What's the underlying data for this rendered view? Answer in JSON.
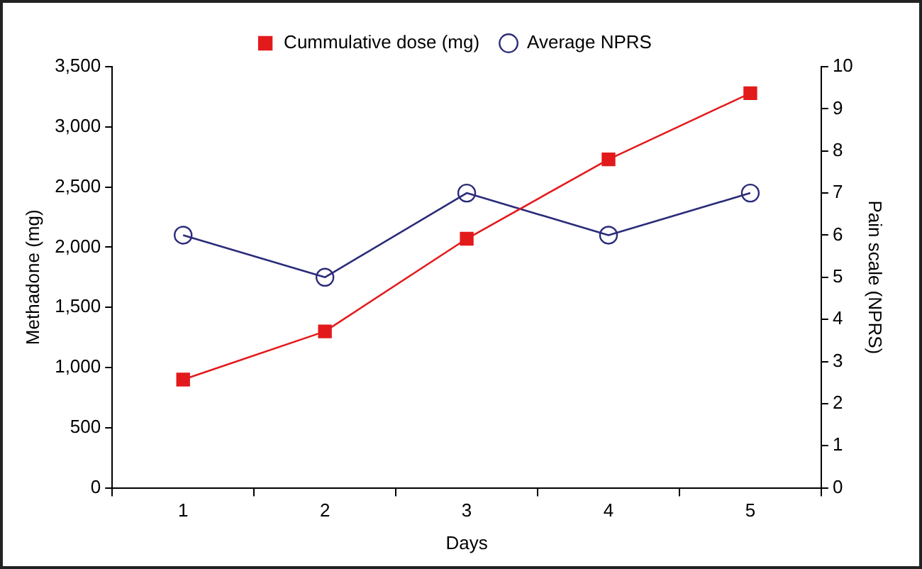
{
  "chart_data": {
    "type": "line",
    "xlabel": "Days",
    "ylabel": "Methadone (mg)",
    "y2label": "Pain scale (NPRS)",
    "categories": [
      "1",
      "2",
      "3",
      "4",
      "5"
    ],
    "series": [
      {
        "name": "Cummulative dose (mg)",
        "color": "#e31a1c",
        "values": [
          900,
          1300,
          2070,
          2730,
          3280
        ],
        "marker": "square"
      },
      {
        "name": "Average NPRS",
        "color": "#2b2b7a",
        "values": [
          6,
          5,
          7,
          6,
          7
        ],
        "axis": "y2",
        "marker": "circle"
      }
    ],
    "ylim": [
      0,
      3500
    ],
    "yticks": [
      0,
      500,
      {
        "value": 1000,
        "label": "1,000"
      },
      {
        "value": 1500,
        "label": "1,500"
      },
      {
        "value": 2000,
        "label": "2,000"
      },
      {
        "value": 2500,
        "label": "2,500"
      },
      {
        "value": 3000,
        "label": "3,000"
      },
      {
        "value": 3500,
        "label": "3,500"
      }
    ],
    "y2lim": [
      0,
      10
    ],
    "y2ticks": [
      0,
      1,
      2,
      3,
      4,
      5,
      6,
      7,
      8,
      9,
      10
    ],
    "grid": false,
    "legend": "top"
  }
}
